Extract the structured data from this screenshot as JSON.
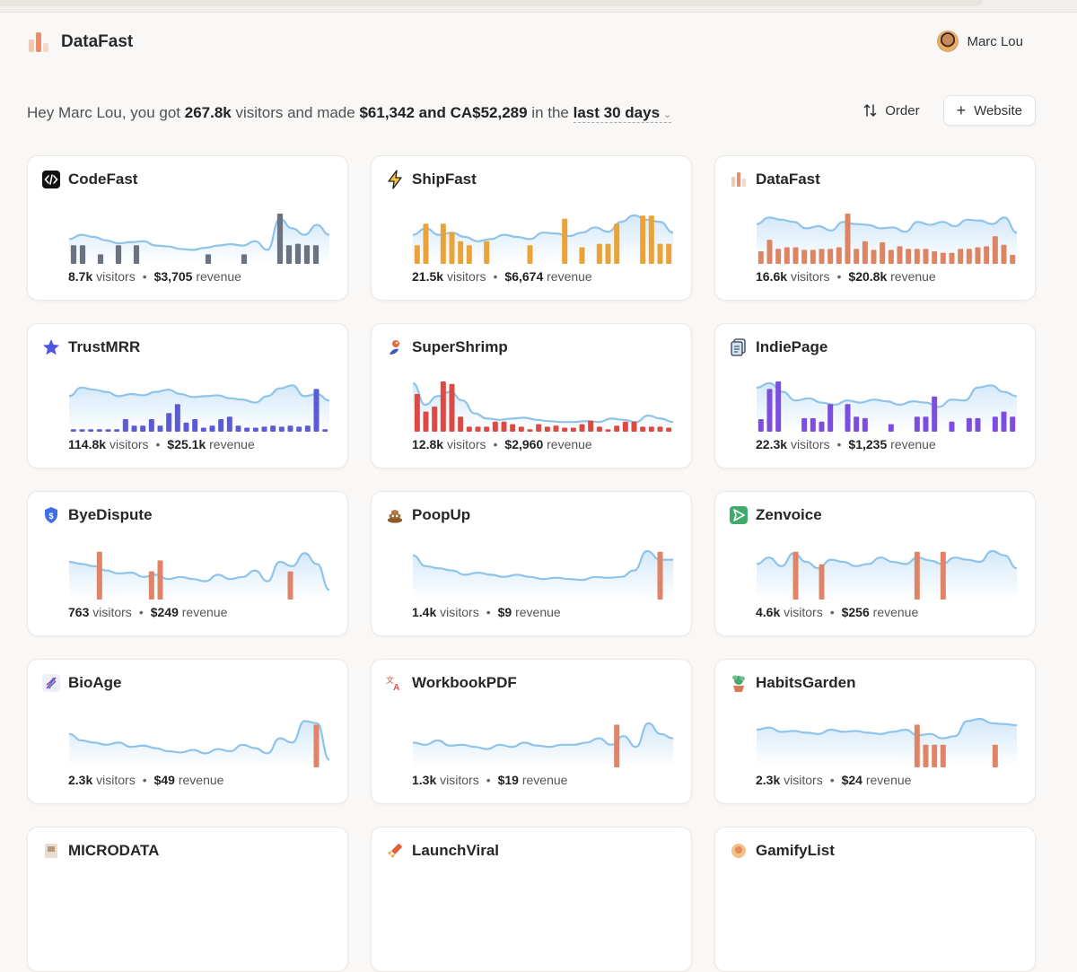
{
  "app": {
    "brand": "DataFast",
    "brand_colors": [
      "#f0c9b4",
      "#e8906b",
      "#f4d8c8"
    ],
    "user_name": "Marc Lou"
  },
  "summary": {
    "greeting": "Hey Marc Lou, you got ",
    "visitors": "267.8k",
    "mid": " visitors and made ",
    "revenue": "$61,342 and CA$52,289",
    "pre_period": " in the ",
    "period": "last 30 days"
  },
  "actions": {
    "order_label": "Order",
    "website_label": "Website"
  },
  "labels": {
    "visitors": "visitors",
    "revenue": "revenue"
  },
  "sites": [
    {
      "name": "CodeFast",
      "icon": "code-icon",
      "visitors": "8.7k",
      "revenue": "$3,705",
      "bar_color": "#6b7280",
      "line": [
        0.45,
        0.55,
        0.5,
        0.42,
        0.35,
        0.38,
        0.4,
        0.3,
        0.28,
        0.22,
        0.2,
        0.25,
        0.3,
        0.33,
        0.3,
        0.4,
        0.2,
        0.92,
        0.7,
        0.55,
        0.78,
        0.55
      ],
      "bars": [
        0.37,
        0.37,
        0,
        0.19,
        0,
        0.37,
        0,
        0.37,
        0,
        0,
        0,
        0,
        0,
        0,
        0,
        0.19,
        0,
        0,
        0,
        0.19,
        0,
        0,
        0,
        1,
        0.37,
        0.4,
        0.37,
        0.37,
        0
      ]
    },
    {
      "name": "ShipFast",
      "icon": "lightning-icon",
      "visitors": "21.5k",
      "revenue": "$6,674",
      "bar_color": "#eaa338",
      "line": [
        0.55,
        0.7,
        0.55,
        0.6,
        0.5,
        0.4,
        0.45,
        0.55,
        0.5,
        0.45,
        0.6,
        0.58,
        0.52,
        0.6,
        0.72,
        0.62,
        0.85,
        1.0,
        0.9,
        0.85,
        0.6
      ],
      "bars": [
        0.37,
        0.8,
        0,
        0.8,
        0.63,
        0.45,
        0.37,
        0,
        0.45,
        0,
        0,
        0,
        0,
        0.37,
        0,
        0,
        0,
        0.9,
        0,
        0.33,
        0,
        0.4,
        0.4,
        0.8,
        0,
        0,
        0.96,
        0.96,
        0.4,
        0.4
      ]
    },
    {
      "name": "DataFast",
      "icon": "datafast-icon",
      "visitors": "16.6k",
      "revenue": "$20.8k",
      "bar_color": "#dd8463",
      "line": [
        0.8,
        0.95,
        0.9,
        0.85,
        0.7,
        0.75,
        0.65,
        0.85,
        0.8,
        0.78,
        0.7,
        0.72,
        0.62,
        0.85,
        0.78,
        0.85,
        0.75,
        0.9,
        0.88,
        0.8,
        0.95,
        0.6
      ],
      "bars": [
        0.25,
        0.48,
        0.3,
        0.33,
        0.33,
        0.28,
        0.28,
        0.3,
        0.3,
        0.33,
        1.0,
        0.3,
        0.45,
        0.28,
        0.43,
        0.28,
        0.35,
        0.3,
        0.3,
        0.3,
        0.25,
        0.22,
        0.22,
        0.3,
        0.3,
        0.33,
        0.35,
        0.55,
        0.38,
        0.18
      ]
    },
    {
      "name": "TrustMRR",
      "icon": "star-icon",
      "visitors": "114.8k",
      "revenue": "$25.1k",
      "bar_color": "#5b5bd6",
      "line": [
        0.7,
        0.9,
        0.85,
        0.8,
        0.7,
        0.75,
        0.72,
        0.8,
        0.85,
        0.75,
        0.68,
        0.7,
        0.72,
        0.65,
        0.62,
        0.55,
        0.7,
        0.88,
        0.95,
        0.7,
        0.75,
        0.6
      ],
      "bars": [
        0.05,
        0.05,
        0.05,
        0.05,
        0.05,
        0.05,
        0.25,
        0.12,
        0.12,
        0.25,
        0.12,
        0.37,
        0.55,
        0.18,
        0.25,
        0.08,
        0.12,
        0.25,
        0.3,
        0.12,
        0.08,
        0.08,
        0.1,
        0.12,
        0.1,
        0.12,
        0.1,
        0.12,
        0.85,
        0.05
      ]
    },
    {
      "name": "SuperShrimp",
      "icon": "shrimp-icon",
      "visitors": "12.8k",
      "revenue": "$2,960",
      "bar_color": "#dd4a43",
      "line": [
        1.0,
        0.5,
        0.7,
        0.8,
        0.6,
        0.3,
        0.18,
        0.15,
        0.18,
        0.2,
        0.15,
        0.12,
        0.1,
        0.1,
        0.12,
        0.1,
        0.18,
        0.15,
        0.1,
        0.25,
        0.18,
        0.1
      ],
      "bars": [
        0.75,
        0.4,
        0.5,
        1.0,
        0.95,
        0.3,
        0.1,
        0.1,
        0.1,
        0.2,
        0.2,
        0.15,
        0.1,
        0.05,
        0.15,
        0.1,
        0.12,
        0.08,
        0.08,
        0.15,
        0.22,
        0.1,
        0.05,
        0.12,
        0.2,
        0.2,
        0.1,
        0.1,
        0.1,
        0.08
      ]
    },
    {
      "name": "IndiePage",
      "icon": "pages-icon",
      "visitors": "22.3k",
      "revenue": "$1,235",
      "bar_color": "#7c4de0",
      "line": [
        0.9,
        1.0,
        0.8,
        0.6,
        0.65,
        0.55,
        0.5,
        0.6,
        0.55,
        0.62,
        0.58,
        0.5,
        0.58,
        0.55,
        0.45,
        0.62,
        0.6,
        0.9,
        0.95,
        0.8,
        0.7
      ],
      "bars": [
        0.25,
        0.85,
        1.0,
        0,
        0,
        0.27,
        0.27,
        0.2,
        0.55,
        0,
        0.55,
        0.3,
        0.27,
        0,
        0,
        0.15,
        0,
        0,
        0.3,
        0.3,
        0.7,
        0,
        0.2,
        0,
        0.27,
        0.27,
        0,
        0.3,
        0.4,
        0.3
      ]
    },
    {
      "name": "ByeDispute",
      "icon": "shield-icon",
      "visitors": "763",
      "revenue": "$249",
      "bar_color": "#df8466",
      "line": [
        0.75,
        0.7,
        0.65,
        0.55,
        0.48,
        0.5,
        0.4,
        0.45,
        0.35,
        0.4,
        0.35,
        0.3,
        0.45,
        0.35,
        0.4,
        0.55,
        0.3,
        0.75,
        0.65,
        0.95,
        0.7,
        0.1
      ],
      "bars": [
        0,
        0,
        0,
        0.95,
        0,
        0,
        0,
        0,
        0,
        0.56,
        0.78,
        0,
        0,
        0,
        0,
        0,
        0,
        0,
        0,
        0,
        0,
        0,
        0,
        0,
        0,
        0.56,
        0,
        0,
        0,
        0
      ]
    },
    {
      "name": "PoopUp",
      "icon": "poop-icon",
      "visitors": "1.4k",
      "revenue": "$9",
      "bar_color": "#df8466",
      "line": [
        0.9,
        0.65,
        0.6,
        0.55,
        0.45,
        0.5,
        0.45,
        0.4,
        0.45,
        0.4,
        0.35,
        0.38,
        0.35,
        0.33,
        0.4,
        0.38,
        0.4,
        0.55,
        1.0,
        0.8,
        0.8
      ],
      "bars": [
        0,
        0,
        0,
        0,
        0,
        0,
        0,
        0,
        0,
        0,
        0,
        0,
        0,
        0,
        0,
        0,
        0,
        0,
        0,
        0,
        0,
        0,
        0,
        0,
        0,
        0,
        0,
        0,
        0.95,
        0
      ]
    },
    {
      "name": "Zenvoice",
      "icon": "send-icon",
      "visitors": "4.6k",
      "revenue": "$256",
      "bar_color": "#df8466",
      "line": [
        0.7,
        0.85,
        0.65,
        0.95,
        0.75,
        0.6,
        0.8,
        0.75,
        0.65,
        0.7,
        0.85,
        0.75,
        0.7,
        0.85,
        0.78,
        0.7,
        0.85,
        0.8,
        0.75,
        1.0,
        0.9,
        0.6
      ],
      "bars": [
        0,
        0,
        0,
        0,
        0.95,
        0,
        0,
        0.7,
        0,
        0,
        0,
        0,
        0,
        0,
        0,
        0,
        0,
        0,
        0.95,
        0,
        0,
        0.95,
        0,
        0,
        0,
        0,
        0,
        0,
        0,
        0
      ]
    },
    {
      "name": "BioAge",
      "icon": "dna-icon",
      "visitors": "2.3k",
      "revenue": "$49",
      "bar_color": "#df8466",
      "line": [
        0.65,
        0.5,
        0.45,
        0.4,
        0.45,
        0.35,
        0.38,
        0.32,
        0.25,
        0.22,
        0.28,
        0.2,
        0.3,
        0.25,
        0.4,
        0.32,
        0.2,
        0.55,
        0.45,
        0.95,
        0.9,
        0.05
      ],
      "bars": [
        0,
        0,
        0,
        0,
        0,
        0,
        0,
        0,
        0,
        0,
        0,
        0,
        0,
        0,
        0,
        0,
        0,
        0,
        0,
        0,
        0,
        0,
        0,
        0,
        0,
        0,
        0,
        0,
        0.85,
        0
      ]
    },
    {
      "name": "WorkbookPDF",
      "icon": "translate-icon",
      "visitors": "1.3k",
      "revenue": "$19",
      "bar_color": "#df8466",
      "line": [
        0.45,
        0.4,
        0.5,
        0.38,
        0.4,
        0.35,
        0.3,
        0.4,
        0.35,
        0.45,
        0.38,
        0.35,
        0.4,
        0.4,
        0.45,
        0.55,
        0.4,
        0.6,
        0.35,
        0.9,
        0.65,
        0.55
      ],
      "bars": [
        0,
        0,
        0,
        0,
        0,
        0,
        0,
        0,
        0,
        0,
        0,
        0,
        0,
        0,
        0,
        0,
        0,
        0,
        0,
        0,
        0,
        0,
        0,
        0.85,
        0,
        0,
        0,
        0,
        0,
        0
      ]
    },
    {
      "name": "HabitsGarden",
      "icon": "plant-icon",
      "visitors": "2.3k",
      "revenue": "$24",
      "bar_color": "#df8466",
      "line": [
        0.75,
        0.8,
        0.7,
        0.72,
        0.68,
        0.65,
        0.75,
        0.7,
        0.72,
        0.68,
        0.65,
        0.7,
        0.75,
        0.62,
        0.65,
        0.55,
        0.6,
        0.95,
        1.0,
        0.9,
        0.88,
        0.85
      ],
      "bars": [
        0,
        0,
        0,
        0,
        0,
        0,
        0,
        0,
        0,
        0,
        0,
        0,
        0,
        0,
        0,
        0,
        0,
        0,
        0.85,
        0.45,
        0.45,
        0.45,
        0,
        0,
        0,
        0,
        0,
        0.45,
        0,
        0
      ]
    },
    {
      "name": "MICRODATA",
      "icon": "microdata-icon",
      "visitors": "",
      "revenue": "",
      "bar_color": "#df8466",
      "line": [],
      "bars": []
    },
    {
      "name": "LaunchViral",
      "icon": "rocket-icon",
      "visitors": "",
      "revenue": "",
      "bar_color": "#df8466",
      "line": [],
      "bars": []
    },
    {
      "name": "GamifyList",
      "icon": "gamify-icon",
      "visitors": "",
      "revenue": "",
      "bar_color": "#df8466",
      "line": [],
      "bars": []
    }
  ]
}
